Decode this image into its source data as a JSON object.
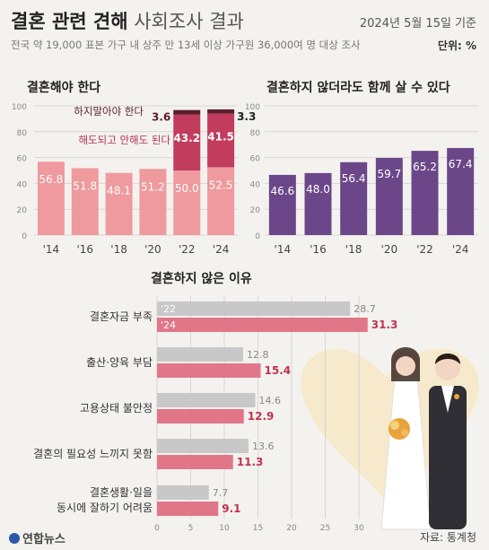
{
  "header": {
    "title_bold": "결혼 관련 견해",
    "title_light": "사회조사 결과",
    "date": "2024년 5월 15일 기준",
    "subtitle": "전국 약 19,000 표본 가구 내 상주 만 13세 이상 가구원 36,000여 명 대상 조사",
    "unit": "단위: %"
  },
  "footer": {
    "logo": "연합뉴스",
    "source": "자료: 통계청"
  },
  "colors": {
    "pink_light": "#ee9a9e",
    "pink_dark": "#c23c5e",
    "maroon": "#5a1e2c",
    "purple": "#6b4789",
    "gray_bar": "#c8c8c8",
    "pink_bar": "#e17688"
  },
  "chart_data": [
    {
      "type": "bar",
      "title": "결혼해야 한다",
      "categories": [
        "'14",
        "'16",
        "'18",
        "'20",
        "'22",
        "'24"
      ],
      "ylim": [
        0,
        100
      ],
      "yticks": [
        "0",
        "20",
        "40",
        "60",
        "80",
        "100"
      ],
      "series": [
        {
          "values": [
            56.8,
            51.8,
            48.1,
            51.2,
            50.0,
            52.5
          ]
        }
      ],
      "stacked_extra": [
        {
          "name": "해도되고 안해도 된다",
          "values": [
            null,
            null,
            null,
            null,
            43.2,
            41.5
          ]
        },
        {
          "name": "하지말아야 한다",
          "values": [
            null,
            null,
            null,
            null,
            3.6,
            3.3
          ]
        }
      ],
      "labels": [
        "56.8",
        "51.8",
        "48.1",
        "51.2",
        "50.0",
        "52.5"
      ],
      "extra_labels": [
        [
          "43.2",
          "3.6"
        ],
        [
          "41.5",
          "3.3"
        ]
      ],
      "stacked": true,
      "grid": true
    },
    {
      "type": "bar",
      "title": "결혼하지 않더라도 함께 살 수 있다",
      "categories": [
        "'14",
        "'16",
        "'18",
        "'20",
        "'22",
        "'24"
      ],
      "ylim": [
        0,
        100
      ],
      "yticks": [
        "0",
        "20",
        "40",
        "60",
        "80",
        "100"
      ],
      "series": [
        {
          "values": [
            46.6,
            48.0,
            56.4,
            59.7,
            65.2,
            67.4
          ]
        }
      ],
      "labels": [
        "46.6",
        "48.0",
        "56.4",
        "59.7",
        "65.2",
        "67.4"
      ],
      "grid": true
    },
    {
      "type": "bar",
      "orientation": "horizontal",
      "title": "결혼하지 않은 이유",
      "categories": [
        "결혼자금 부족",
        "출산·양육 부담",
        "고용상태 불안정",
        "결혼의 필요성 느끼지 못함",
        "결혼생활·일을 동시에 잘하기 어려움"
      ],
      "xlim": [
        0,
        30
      ],
      "xticks": [
        "0",
        "5",
        "10",
        "15",
        "20",
        "25",
        "30"
      ],
      "series": [
        {
          "name": "'22",
          "values": [
            28.7,
            12.8,
            14.6,
            13.6,
            7.7
          ]
        },
        {
          "name": "'24",
          "values": [
            31.3,
            15.4,
            12.9,
            11.3,
            9.1
          ]
        }
      ],
      "labels22": [
        "28.7",
        "12.8",
        "14.6",
        "13.6",
        "7.7"
      ],
      "labels24": [
        "31.3",
        "15.4",
        "12.9",
        "11.3",
        "9.1"
      ],
      "grid": true
    }
  ]
}
